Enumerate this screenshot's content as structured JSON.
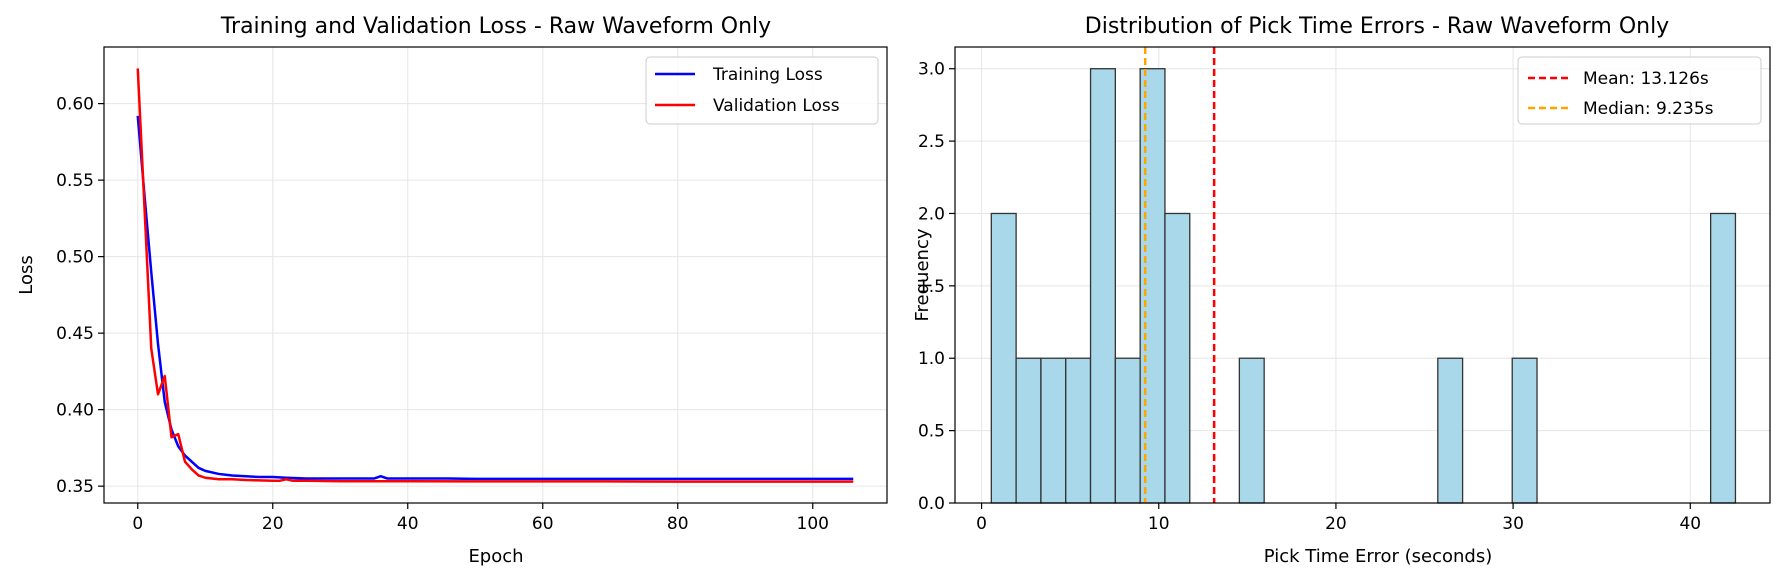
{
  "chart_data": [
    {
      "type": "line",
      "title": "Training and Validation Loss - Raw Waveform Only",
      "xlabel": "Epoch",
      "ylabel": "Loss",
      "xlim": [
        -5,
        111
      ],
      "ylim": [
        0.339,
        0.637
      ],
      "xticks": [
        0,
        20,
        40,
        60,
        80,
        100
      ],
      "xtick_labels": [
        "0",
        "20",
        "40",
        "60",
        "80",
        "100"
      ],
      "yticks": [
        0.35,
        0.4,
        0.45,
        0.5,
        0.55,
        0.6
      ],
      "ytick_labels": [
        "0.35",
        "0.40",
        "0.45",
        "0.50",
        "0.55",
        "0.60"
      ],
      "grid": true,
      "legend": "top-right",
      "series": [
        {
          "name": "Training Loss",
          "color": "#0000ff",
          "x": [
            0,
            1,
            2,
            3,
            4,
            5,
            6,
            7,
            8,
            9,
            10,
            12,
            14,
            16,
            18,
            20,
            22,
            25,
            30,
            34,
            35,
            36,
            37,
            40,
            46,
            50,
            60,
            70,
            80,
            90,
            100,
            106
          ],
          "y": [
            0.592,
            0.54,
            0.49,
            0.443,
            0.405,
            0.387,
            0.376,
            0.37,
            0.366,
            0.362,
            0.36,
            0.358,
            0.357,
            0.3565,
            0.356,
            0.356,
            0.3555,
            0.355,
            0.355,
            0.355,
            0.355,
            0.3565,
            0.355,
            0.355,
            0.355,
            0.3548,
            0.3548,
            0.3548,
            0.3548,
            0.3548,
            0.3548,
            0.3548
          ]
        },
        {
          "name": "Validation Loss",
          "color": "#ff0000",
          "x": [
            0,
            1,
            2,
            3,
            4,
            5,
            6,
            7,
            8,
            9,
            10,
            12,
            14,
            16,
            18,
            20,
            21,
            22,
            23,
            25,
            30,
            40,
            50,
            60,
            70,
            80,
            90,
            100,
            106
          ],
          "y": [
            0.623,
            0.532,
            0.44,
            0.41,
            0.422,
            0.382,
            0.384,
            0.366,
            0.361,
            0.357,
            0.3555,
            0.3545,
            0.3545,
            0.354,
            0.3538,
            0.3535,
            0.3535,
            0.3545,
            0.3535,
            0.3535,
            0.3532,
            0.3532,
            0.3531,
            0.3531,
            0.3531,
            0.353,
            0.353,
            0.353,
            0.353
          ]
        }
      ]
    },
    {
      "type": "bar",
      "title": "Distribution of Pick Time Errors - Raw Waveform Only",
      "xlabel": "Pick Time Error (seconds)",
      "ylabel": "Frequency",
      "xlim": [
        -1.5,
        44.5
      ],
      "ylim": [
        0,
        3.15
      ],
      "xticks": [
        0,
        10,
        20,
        30,
        40
      ],
      "xtick_labels": [
        "0",
        "10",
        "20",
        "30",
        "40"
      ],
      "yticks": [
        0.0,
        0.5,
        1.0,
        1.5,
        2.0,
        2.5,
        3.0
      ],
      "ytick_labels": [
        "0.0",
        "0.5",
        "1.0",
        "1.5",
        "2.0",
        "2.5",
        "3.0"
      ],
      "grid": true,
      "legend": "top-right",
      "bar_color": "#a8d8ea",
      "bin_width": 1.4,
      "bins": [
        {
          "left": 0.55,
          "value": 2
        },
        {
          "left": 1.95,
          "value": 1
        },
        {
          "left": 3.35,
          "value": 1
        },
        {
          "left": 4.75,
          "value": 1
        },
        {
          "left": 6.15,
          "value": 3
        },
        {
          "left": 7.55,
          "value": 1
        },
        {
          "left": 8.95,
          "value": 3
        },
        {
          "left": 10.35,
          "value": 2
        },
        {
          "left": 14.55,
          "value": 1
        },
        {
          "left": 25.75,
          "value": 1
        },
        {
          "left": 29.95,
          "value": 1
        },
        {
          "left": 41.15,
          "value": 2
        }
      ],
      "vlines": [
        {
          "name": "Mean: 13.126s",
          "x": 13.126,
          "color": "#ff0000"
        },
        {
          "name": "Median: 9.235s",
          "x": 9.235,
          "color": "#ffa500"
        }
      ]
    }
  ]
}
